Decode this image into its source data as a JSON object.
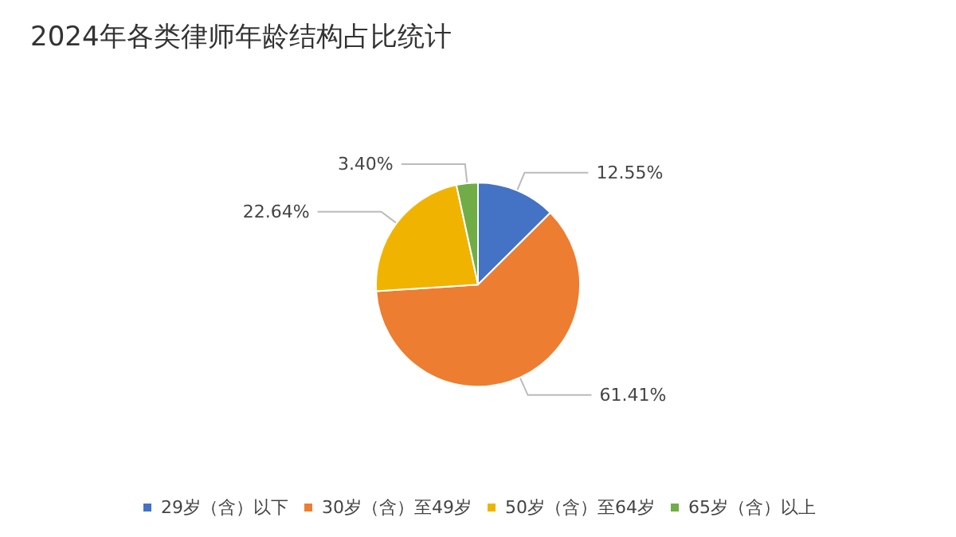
{
  "chart_data": {
    "type": "pie",
    "title": "2024年各类律师年龄结构占比统计",
    "categories": [
      "29岁（含）以下",
      "30岁（含）至49岁",
      "50岁（含）至64岁",
      "65岁（含）以上"
    ],
    "values": [
      12.55,
      61.41,
      22.64,
      3.4
    ],
    "value_labels": [
      "12.55%",
      "61.41%",
      "22.64%",
      "3.40%"
    ],
    "colors": [
      "#4472c4",
      "#ed7d31",
      "#f0b400",
      "#70ad47"
    ],
    "legend": "bottom"
  }
}
